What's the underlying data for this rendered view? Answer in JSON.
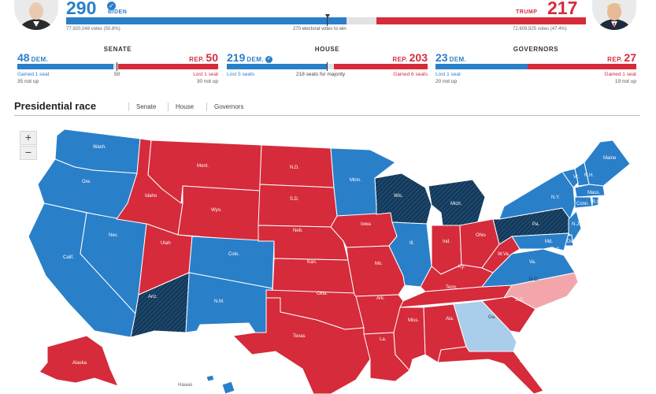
{
  "president": {
    "dem": {
      "electoral": "290",
      "name": "BIDEN",
      "votes": "77,920,048 votes (50.8%)",
      "electoral_value": 290,
      "winner_check": "✓"
    },
    "rep": {
      "electoral": "217",
      "name": "TRUMP",
      "votes": "72,609,925 votes (47.4%)",
      "electoral_value": 217
    },
    "threshold_label": "270 electoral votes to win",
    "total_electoral": 538
  },
  "congress": {
    "senate": {
      "title": "SENATE",
      "dem_num": "48",
      "dem_label": "DEM.",
      "rep_num": "50",
      "rep_label": "REP.",
      "dem_note1": "Gained 1 seat",
      "dem_note2": "35 not up",
      "rep_note1": "Lost 1 seat",
      "rep_note2": "30 not up",
      "mid_label": "50",
      "dem_value": 48,
      "rep_value": 50,
      "total": 100
    },
    "house": {
      "title": "HOUSE",
      "dem_num": "219",
      "dem_label": "DEM.",
      "dem_check": "✓",
      "rep_num": "203",
      "rep_label": "REP.",
      "dem_note1": "Lost 5 seats",
      "rep_note1": "Gained 6 seats",
      "mid_label": "218 seats for majority",
      "dem_value": 219,
      "rep_value": 203,
      "total": 435
    },
    "governors": {
      "title": "GOVERNORS",
      "dem_num": "23",
      "dem_label": "DEM.",
      "rep_num": "27",
      "rep_label": "REP.",
      "dem_note1": "Lost 1 seat",
      "dem_note2": "20 not up",
      "rep_note1": "Gained 1 seat",
      "rep_note2": "19 not up",
      "dem_value": 23,
      "rep_value": 27,
      "total": 50
    }
  },
  "tabs": {
    "active": "Presidential race",
    "items": [
      "Senate",
      "House",
      "Governors"
    ]
  },
  "zoom": {
    "in": "+",
    "out": "−"
  },
  "colors": {
    "dem": "#2a7fc9",
    "rep": "#d52b3b",
    "dem_flip": "#123a5c",
    "lean_dem": "#a9cdea",
    "lean_rep": "#f2a6ab",
    "undecided": "#e2e2e2"
  },
  "map": {
    "labels": {
      "wash": "Wash.",
      "ore": "Ore.",
      "calif": "Calif.",
      "nev": "Nev.",
      "idaho": "Idaho",
      "mont": "Mont.",
      "wyo": "Wyo.",
      "utah": "Utah",
      "colo": "Colo.",
      "ariz": "Ariz.",
      "nm": "N.M.",
      "nd": "N.D.",
      "sd": "S.D.",
      "neb": "Neb.",
      "kan": "Kan.",
      "okla": "Okla.",
      "texas": "Texas",
      "minn": "Minn.",
      "iowa": "Iowa",
      "mo": "Mo.",
      "ark": "Ark.",
      "la": "La.",
      "wis": "Wis.",
      "ill": "Ill.",
      "mich": "Mich.",
      "ind": "Ind.",
      "ohio": "Ohio",
      "ky": "Ky.",
      "tenn": "Tenn.",
      "miss": "Miss.",
      "ala": "Ala.",
      "ga": "Ga.",
      "fla": "Fla.",
      "sc": "S.C.",
      "nc": "N.C.",
      "va": "Va.",
      "wva": "W.Va.",
      "pa": "Pa.",
      "ny": "N.Y.",
      "vt": "Vt.",
      "nh": "N.H.",
      "maine": "Maine",
      "mass": "Mass.",
      "conn": "Conn.",
      "ri": "R.I.",
      "nj": "N.J.",
      "del": "Del.",
      "md": "Md.",
      "dc": "D.C.",
      "alaska": "Alaska",
      "hawaii": "Hawaii"
    }
  }
}
